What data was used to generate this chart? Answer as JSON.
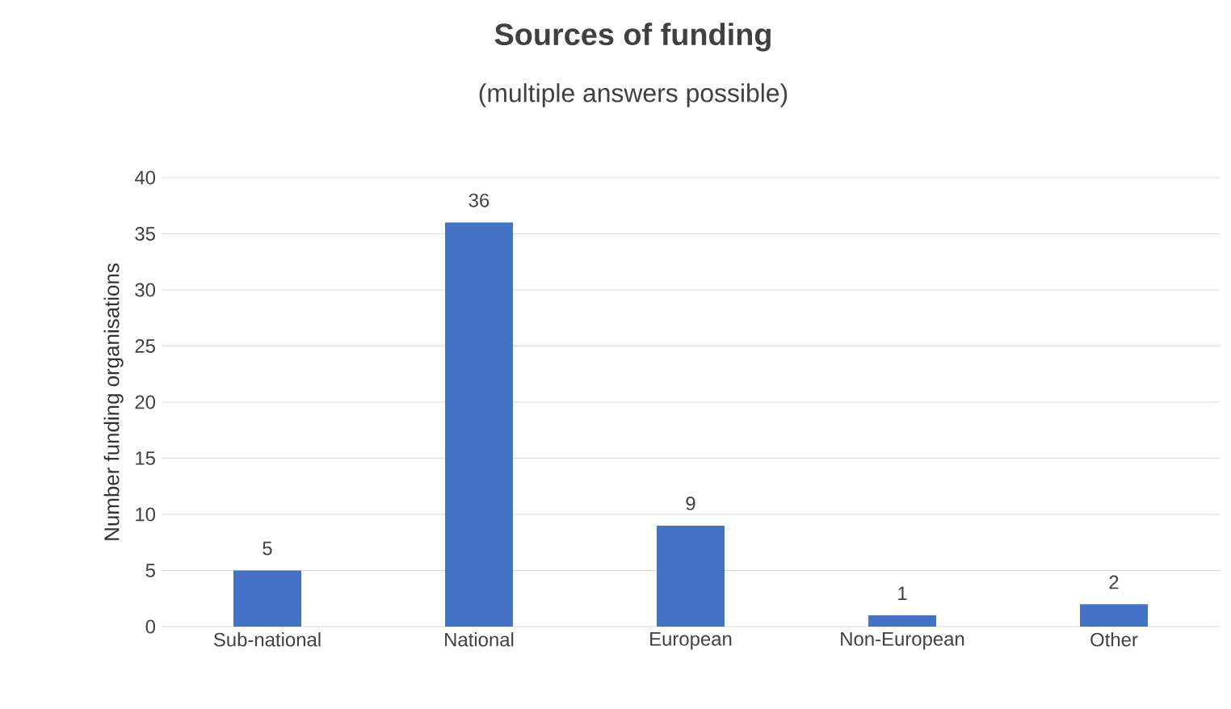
{
  "chart_data": {
    "type": "bar",
    "title": "Sources of funding",
    "subtitle": "(multiple answers possible)",
    "ylabel": "Number funding organisations",
    "categories": [
      "Sub-national",
      "National",
      "European",
      "Non-European",
      "Other"
    ],
    "values": [
      5,
      36,
      9,
      1,
      2
    ],
    "color": "#4472c4",
    "ylim": [
      0,
      40
    ],
    "yticks": [
      0,
      5,
      10,
      15,
      20,
      25,
      30,
      35,
      40
    ],
    "grid": "y",
    "data_labels": true
  }
}
